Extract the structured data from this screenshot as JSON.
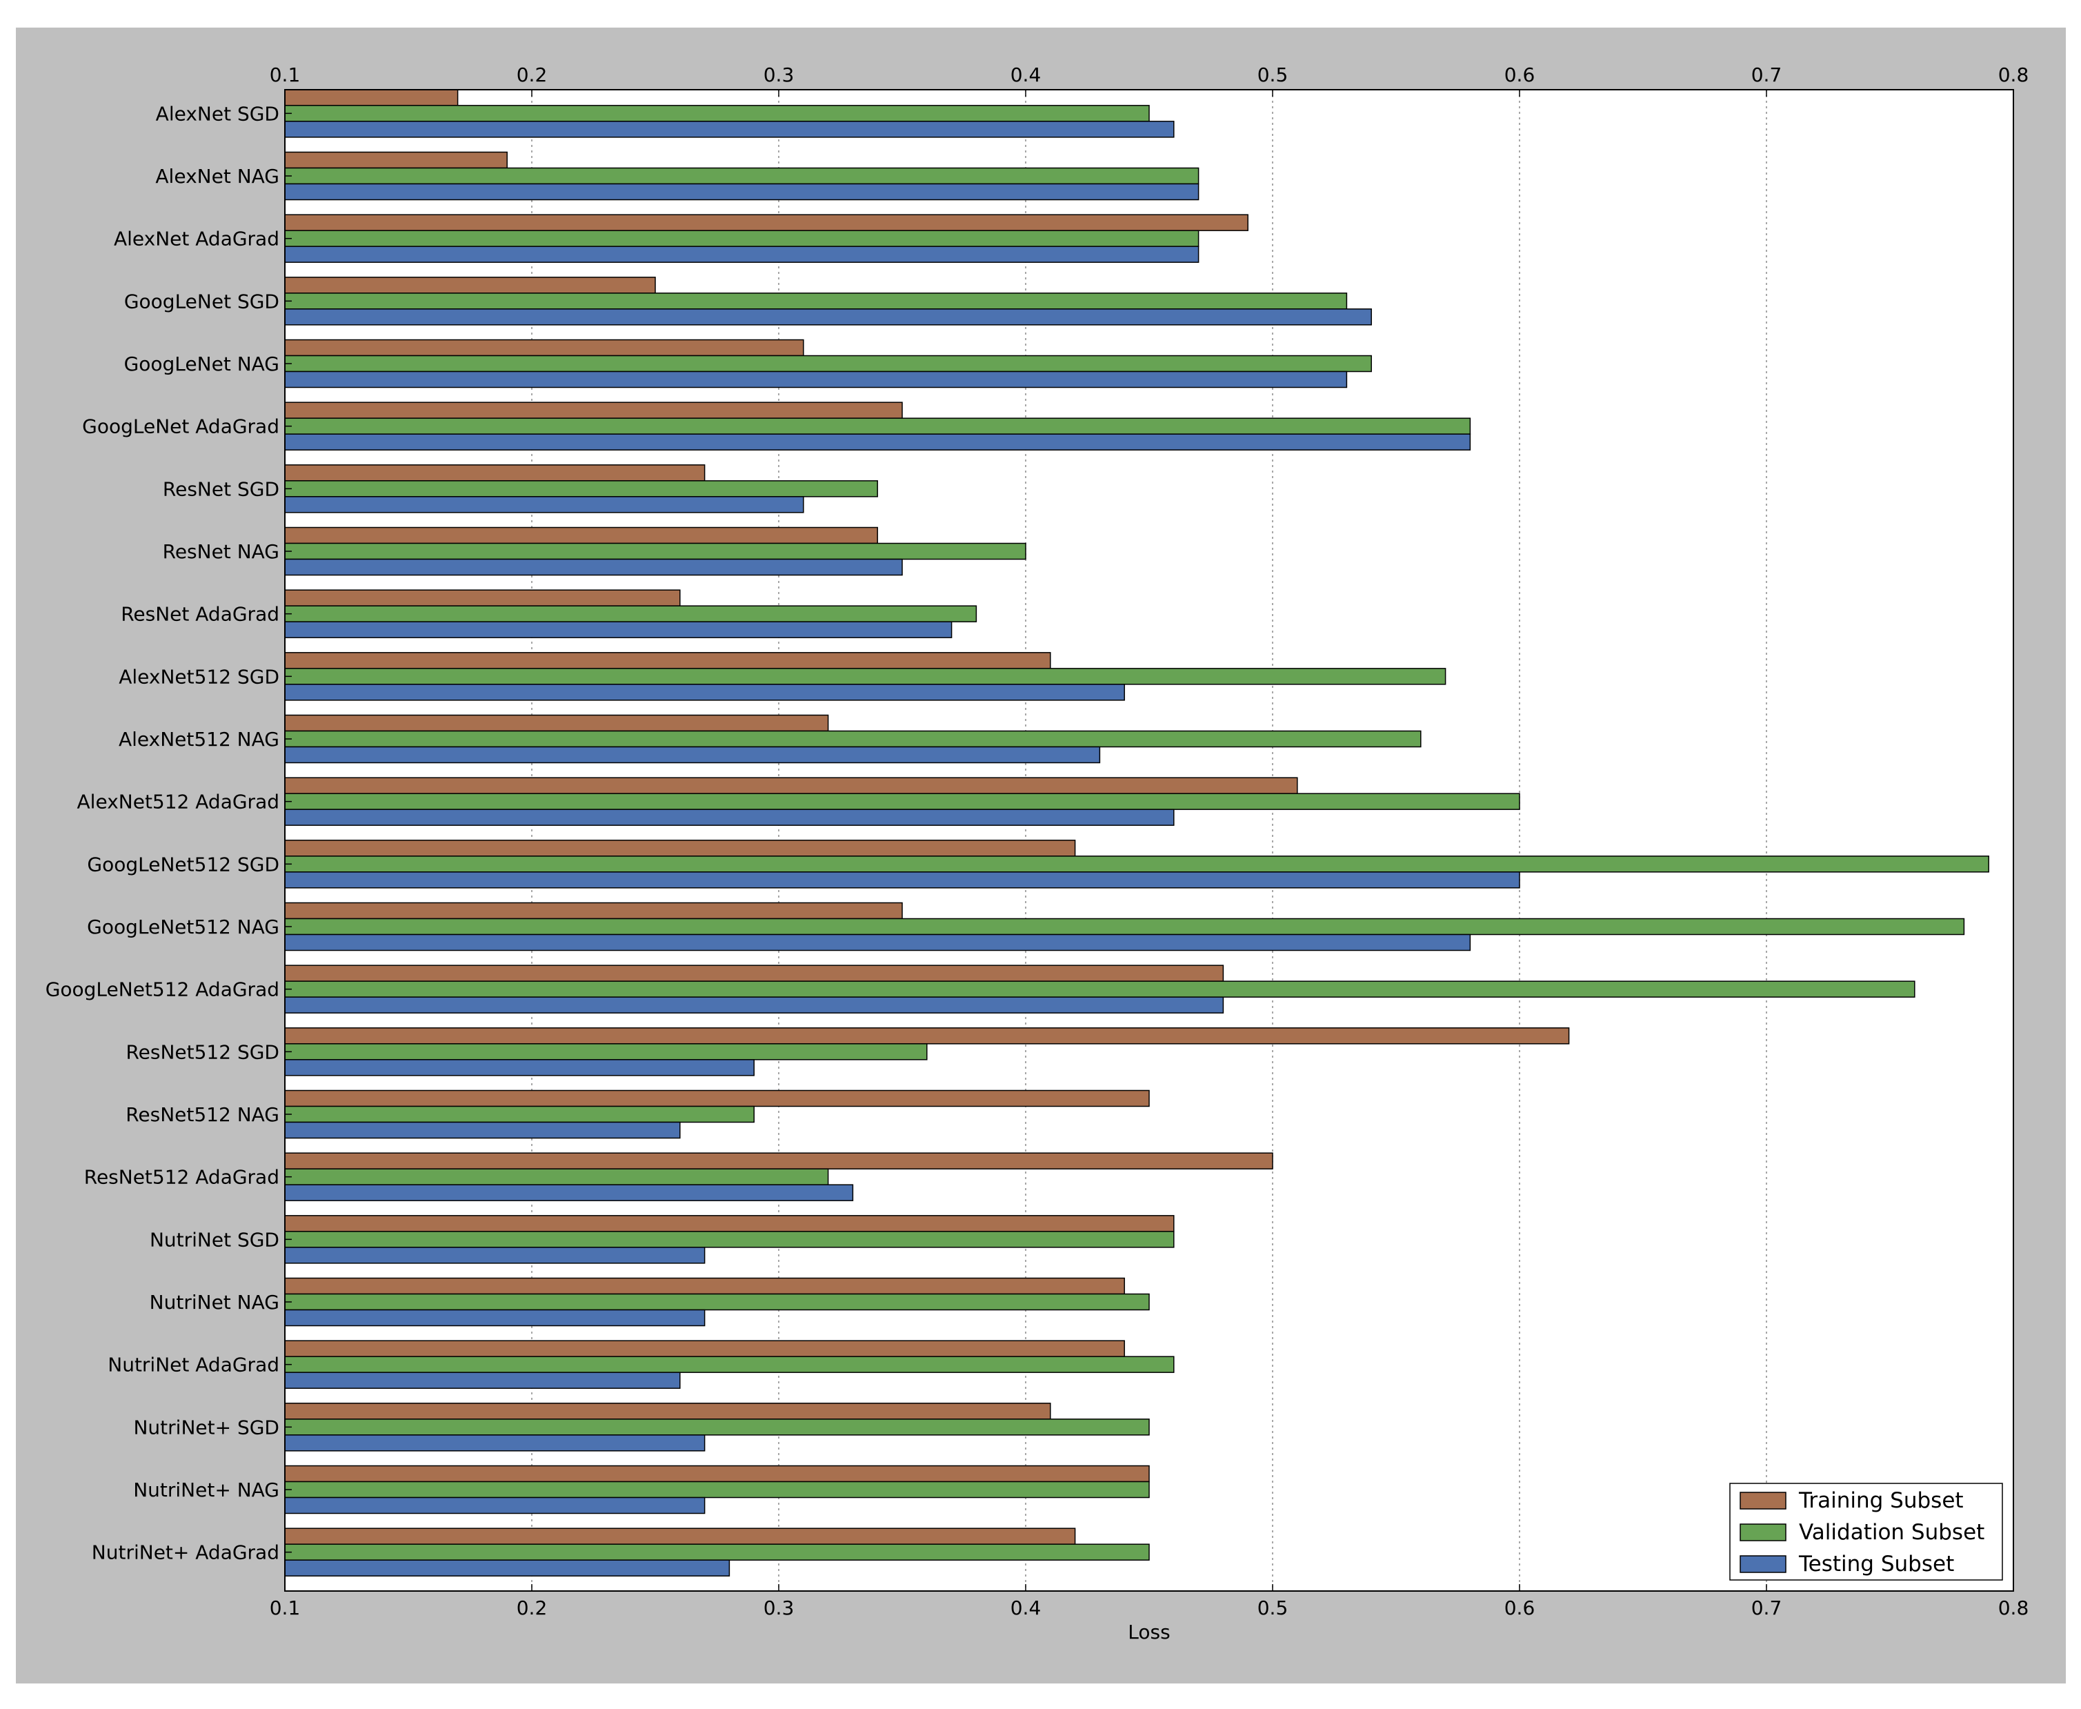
{
  "chart_data": {
    "type": "bar",
    "orientation": "horizontal",
    "title": "",
    "xlabel": "Loss",
    "ylabel": "",
    "xlim": [
      0.1,
      0.8
    ],
    "xticks": [
      "0.1",
      "0.2",
      "0.3",
      "0.4",
      "0.5",
      "0.6",
      "0.7",
      "0.8"
    ],
    "grid": true,
    "legend_position": "bottom-right",
    "categories": [
      "AlexNet SGD",
      "AlexNet NAG",
      "AlexNet AdaGrad",
      "GoogLeNet SGD",
      "GoogLeNet NAG",
      "GoogLeNet AdaGrad",
      "ResNet SGD",
      "ResNet NAG",
      "ResNet AdaGrad",
      "AlexNet512 SGD",
      "AlexNet512 NAG",
      "AlexNet512 AdaGrad",
      "GoogLeNet512 SGD",
      "GoogLeNet512 NAG",
      "GoogLeNet512 AdaGrad",
      "ResNet512 SGD",
      "ResNet512 NAG",
      "ResNet512 AdaGrad",
      "NutriNet SGD",
      "NutriNet NAG",
      "NutriNet AdaGrad",
      "NutriNet+ SGD",
      "NutriNet+ NAG",
      "NutriNet+ AdaGrad"
    ],
    "series": [
      {
        "name": "Training Subset",
        "color": "#a8704f",
        "values": [
          0.17,
          0.19,
          0.49,
          0.25,
          0.31,
          0.35,
          0.27,
          0.34,
          0.26,
          0.41,
          0.32,
          0.51,
          0.42,
          0.35,
          0.48,
          0.62,
          0.45,
          0.5,
          0.46,
          0.44,
          0.44,
          0.41,
          0.45,
          0.42
        ]
      },
      {
        "name": "Validation Subset",
        "color": "#67a354",
        "values": [
          0.45,
          0.47,
          0.47,
          0.53,
          0.54,
          0.58,
          0.34,
          0.4,
          0.38,
          0.57,
          0.56,
          0.6,
          0.79,
          0.78,
          0.76,
          0.36,
          0.29,
          0.32,
          0.46,
          0.45,
          0.46,
          0.45,
          0.45,
          0.45
        ]
      },
      {
        "name": "Testing Subset",
        "color": "#4c72b0",
        "values": [
          0.46,
          0.47,
          0.47,
          0.54,
          0.53,
          0.58,
          0.31,
          0.35,
          0.37,
          0.44,
          0.43,
          0.46,
          0.6,
          0.58,
          0.48,
          0.29,
          0.26,
          0.33,
          0.27,
          0.27,
          0.26,
          0.27,
          0.27,
          0.28
        ]
      }
    ]
  }
}
